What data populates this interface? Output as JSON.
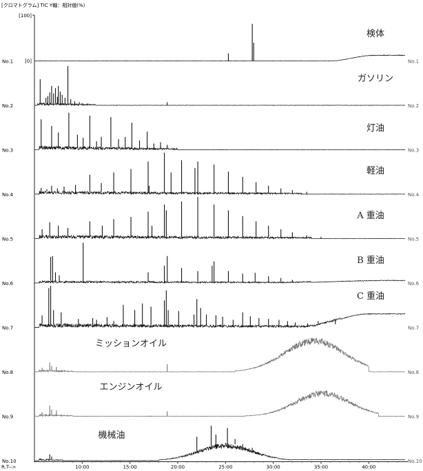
{
  "chart_data": {
    "type": "line",
    "header": "[クロマトグラム]  TIC  Y軸：相対値(%)",
    "y_axis_labels": {
      "max": "[100]",
      "min": "[0]"
    },
    "x_axis_label": "R.T-->",
    "x_ticks": [
      10.0,
      15.0,
      20.0,
      25.0,
      30.0,
      35.0,
      40.0
    ],
    "x_tick_labels": [
      "10:00",
      "15:00",
      "20:00",
      "25:00",
      "30:00",
      "35:00",
      "40:00"
    ],
    "xlim": [
      5.0,
      43.8
    ],
    "ylim": [
      0,
      100
    ],
    "legend": "none",
    "colors": {
      "dark": "#111111",
      "gray": "#707070"
    },
    "series": [
      {
        "id": "No.1",
        "label": "No.1",
        "name": "検体",
        "peaks": [
          [
            25.3,
            18
          ],
          [
            27.8,
            85
          ],
          [
            27.95,
            42
          ]
        ],
        "hump": {
          "start": 36.0,
          "rise_end": 40.5,
          "level": 12
        }
      },
      {
        "id": "No.2",
        "label": "No.2",
        "name": "ガソリン",
        "peaks": [
          [
            5.6,
            60
          ],
          [
            6.2,
            18
          ],
          [
            6.4,
            22
          ],
          [
            6.6,
            30
          ],
          [
            6.8,
            45
          ],
          [
            7.0,
            28
          ],
          [
            7.2,
            40
          ],
          [
            7.4,
            20
          ],
          [
            7.5,
            45
          ],
          [
            7.7,
            32
          ],
          [
            7.9,
            25
          ],
          [
            8.2,
            18
          ],
          [
            8.5,
            90
          ],
          [
            8.8,
            15
          ],
          [
            9.2,
            10
          ],
          [
            9.7,
            8
          ],
          [
            10.0,
            6
          ],
          [
            10.6,
            5
          ],
          [
            18.9,
            8
          ]
        ],
        "noise": {
          "start": 5.3,
          "end": 11.5,
          "amp": 6
        }
      },
      {
        "id": "No.3",
        "label": "No.3",
        "name": "灯油",
        "peaks": [
          [
            5.7,
            70
          ],
          [
            6.8,
            55
          ],
          [
            7.5,
            40
          ],
          [
            8.6,
            85
          ],
          [
            9.5,
            35
          ],
          [
            10.1,
            28
          ],
          [
            10.8,
            78
          ],
          [
            11.5,
            20
          ],
          [
            12.0,
            30
          ],
          [
            13.0,
            75
          ],
          [
            13.8,
            25
          ],
          [
            14.5,
            30
          ],
          [
            15.2,
            62
          ],
          [
            16.0,
            22
          ],
          [
            16.8,
            42
          ],
          [
            17.5,
            15
          ],
          [
            18.2,
            18
          ],
          [
            18.9,
            12
          ]
        ],
        "noise": {
          "start": 5.5,
          "end": 20.0,
          "amp": 9
        }
      },
      {
        "id": "No.4",
        "label": "No.4",
        "name": "軽油",
        "peaks": [
          [
            5.7,
            15
          ],
          [
            6.3,
            12
          ],
          [
            6.8,
            20
          ],
          [
            7.4,
            14
          ],
          [
            8.1,
            18
          ],
          [
            9.3,
            22
          ],
          [
            10.8,
            45
          ],
          [
            12.0,
            26
          ],
          [
            13.3,
            50
          ],
          [
            15.1,
            58
          ],
          [
            17.0,
            20
          ],
          [
            16.9,
            75
          ],
          [
            18.6,
            95
          ],
          [
            19.3,
            50
          ],
          [
            20.4,
            78
          ],
          [
            21.8,
            60
          ],
          [
            22.1,
            75
          ],
          [
            23.8,
            68
          ],
          [
            25.3,
            52
          ],
          [
            26.8,
            40
          ],
          [
            28.2,
            28
          ],
          [
            29.5,
            20
          ],
          [
            30.8,
            14
          ],
          [
            32.0,
            10
          ],
          [
            33.5,
            6
          ]
        ],
        "noise": {
          "start": 5.5,
          "end": 33.0,
          "amp": 7
        }
      },
      {
        "id": "No.5",
        "label": "No.5",
        "name": "A 重油",
        "peaks": [
          [
            5.8,
            22
          ],
          [
            6.6,
            38
          ],
          [
            7.5,
            30
          ],
          [
            8.5,
            25
          ],
          [
            10.8,
            40
          ],
          [
            12.1,
            30
          ],
          [
            13.3,
            45
          ],
          [
            15.1,
            50
          ],
          [
            16.9,
            62
          ],
          [
            17.3,
            30
          ],
          [
            18.6,
            78
          ],
          [
            18.8,
            65
          ],
          [
            20.4,
            85
          ],
          [
            22.1,
            95
          ],
          [
            23.8,
            78
          ],
          [
            25.3,
            65
          ],
          [
            26.8,
            52
          ],
          [
            28.2,
            40
          ],
          [
            29.5,
            30
          ],
          [
            30.8,
            22
          ],
          [
            32.0,
            15
          ],
          [
            33.5,
            8
          ],
          [
            35.0,
            5
          ]
        ],
        "noise": {
          "start": 5.5,
          "end": 34.0,
          "amp": 8
        }
      },
      {
        "id": "No.6",
        "label": "No.6",
        "name": "B 重油",
        "peaks": [
          [
            6.7,
            60
          ],
          [
            6.9,
            62
          ],
          [
            7.2,
            25
          ],
          [
            7.6,
            18
          ],
          [
            10.1,
            92
          ],
          [
            16.9,
            25
          ],
          [
            18.6,
            40
          ],
          [
            18.9,
            62
          ],
          [
            20.4,
            35
          ],
          [
            22.1,
            28
          ],
          [
            23.6,
            40
          ],
          [
            23.8,
            50
          ],
          [
            25.3,
            28
          ],
          [
            26.8,
            22
          ],
          [
            28.1,
            24
          ],
          [
            29.5,
            16
          ],
          [
            30.8,
            12
          ],
          [
            32.0,
            8
          ]
        ],
        "noise": {
          "start": 5.5,
          "end": 34.0,
          "amp": 5
        },
        "hump": {
          "start": 30.0,
          "rise_end": 42.0,
          "level": 5
        }
      },
      {
        "id": "No.7",
        "label": "No.7",
        "name": "C 重油",
        "peaks": [
          [
            5.8,
            28
          ],
          [
            6.5,
            90
          ],
          [
            6.7,
            95
          ],
          [
            7.0,
            40
          ],
          [
            7.8,
            35
          ],
          [
            9.6,
            20
          ],
          [
            11.1,
            22
          ],
          [
            11.5,
            18
          ],
          [
            12.6,
            24
          ],
          [
            13.3,
            15
          ],
          [
            14.3,
            52
          ],
          [
            15.5,
            40
          ],
          [
            16.3,
            55
          ],
          [
            17.2,
            48
          ],
          [
            18.6,
            62
          ],
          [
            18.8,
            85
          ],
          [
            19.0,
            40
          ],
          [
            20.1,
            38
          ],
          [
            21.7,
            30
          ],
          [
            22.0,
            65
          ],
          [
            22.4,
            45
          ],
          [
            23.0,
            30
          ],
          [
            24.0,
            28
          ],
          [
            24.7,
            25
          ],
          [
            25.8,
            18
          ],
          [
            26.8,
            35
          ],
          [
            27.6,
            26
          ],
          [
            28.5,
            22
          ],
          [
            29.5,
            20
          ],
          [
            30.6,
            18
          ],
          [
            31.5,
            15
          ],
          [
            32.3,
            12
          ],
          [
            33.6,
            10
          ],
          [
            34.7,
            15
          ],
          [
            35.6,
            12
          ],
          [
            36.5,
            8
          ]
        ],
        "noise": {
          "start": 5.5,
          "end": 37.0,
          "amp": 9
        },
        "hump": {
          "start": 33.0,
          "rise_end": 40.0,
          "level": 30
        }
      },
      {
        "id": "No.8",
        "label": "No.8",
        "name": "ミッションオイル",
        "peaks": [
          [
            5.8,
            10
          ],
          [
            6.6,
            22
          ],
          [
            6.8,
            14
          ],
          [
            7.3,
            12
          ],
          [
            18.9,
            18
          ]
        ],
        "noise": {
          "start": 5.5,
          "end": 9.0,
          "amp": 5
        },
        "hump": {
          "center": 34.3,
          "width": 4.4,
          "height": 62,
          "start": 26.0,
          "end": 40.0,
          "noise_amp": 16
        }
      },
      {
        "id": "No.9",
        "label": "No.9",
        "name": "エンジンオイル",
        "peaks": [
          [
            5.8,
            10
          ],
          [
            6.6,
            25
          ],
          [
            6.8,
            16
          ],
          [
            7.3,
            14
          ],
          [
            18.9,
            12
          ]
        ],
        "noise": {
          "start": 5.5,
          "end": 9.0,
          "amp": 5
        },
        "hump": {
          "center": 35.2,
          "width": 4.0,
          "height": 45,
          "start": 27.0,
          "end": 41.0,
          "noise_amp": 14
        }
      },
      {
        "id": "No.10",
        "label": "No.10",
        "name": "機械油",
        "peaks": [
          [
            6.6,
            15
          ],
          [
            6.8,
            10
          ],
          [
            22.0,
            55
          ],
          [
            23.5,
            80
          ],
          [
            24.0,
            60
          ],
          [
            25.2,
            75
          ],
          [
            26.0,
            50
          ],
          [
            26.8,
            38
          ],
          [
            27.8,
            30
          ]
        ],
        "noise": {
          "start": 5.5,
          "end": 8.0,
          "amp": 4
        },
        "hump": {
          "center": 25.0,
          "width": 4.0,
          "height": 28,
          "start": 18.0,
          "end": 32.0,
          "noise_amp": 12
        },
        "tail": {
          "start": 32.0,
          "level": 2
        }
      }
    ]
  }
}
